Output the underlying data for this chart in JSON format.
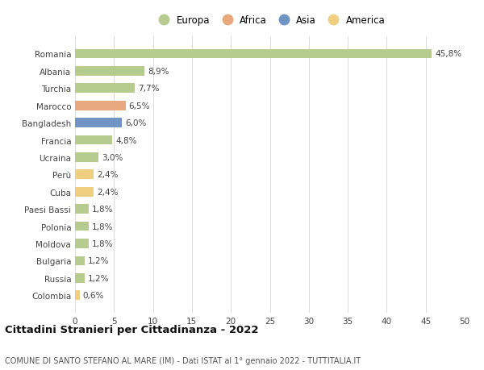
{
  "countries": [
    "Romania",
    "Albania",
    "Turchia",
    "Marocco",
    "Bangladesh",
    "Francia",
    "Ucraina",
    "Perù",
    "Cuba",
    "Paesi Bassi",
    "Polonia",
    "Moldova",
    "Bulgaria",
    "Russia",
    "Colombia"
  ],
  "values": [
    45.8,
    8.9,
    7.7,
    6.5,
    6.0,
    4.8,
    3.0,
    2.4,
    2.4,
    1.8,
    1.8,
    1.8,
    1.2,
    1.2,
    0.6
  ],
  "labels": [
    "45,8%",
    "8,9%",
    "7,7%",
    "6,5%",
    "6,0%",
    "4,8%",
    "3,0%",
    "2,4%",
    "2,4%",
    "1,8%",
    "1,8%",
    "1,8%",
    "1,2%",
    "1,2%",
    "0,6%"
  ],
  "continents": [
    "Europa",
    "Europa",
    "Europa",
    "Africa",
    "Asia",
    "Europa",
    "Europa",
    "America",
    "America",
    "Europa",
    "Europa",
    "Europa",
    "Europa",
    "Europa",
    "America"
  ],
  "continent_colors": {
    "Europa": "#b5cc8e",
    "Africa": "#e8a97e",
    "Asia": "#7094c4",
    "America": "#f0d080"
  },
  "legend_order": [
    "Europa",
    "Africa",
    "Asia",
    "America"
  ],
  "title_bold": "Cittadini Stranieri per Cittadinanza - 2022",
  "subtitle": "COMUNE DI SANTO STEFANO AL MARE (IM) - Dati ISTAT al 1° gennaio 2022 - TUTTITALIA.IT",
  "xlim": [
    0,
    50
  ],
  "xticks": [
    0,
    5,
    10,
    15,
    20,
    25,
    30,
    35,
    40,
    45,
    50
  ],
  "background_color": "#ffffff",
  "grid_color": "#dddddd",
  "bar_height": 0.55,
  "label_fontsize": 7.5,
  "tick_fontsize": 7.5,
  "title_fontsize": 9.5,
  "subtitle_fontsize": 7.0,
  "legend_fontsize": 8.5
}
